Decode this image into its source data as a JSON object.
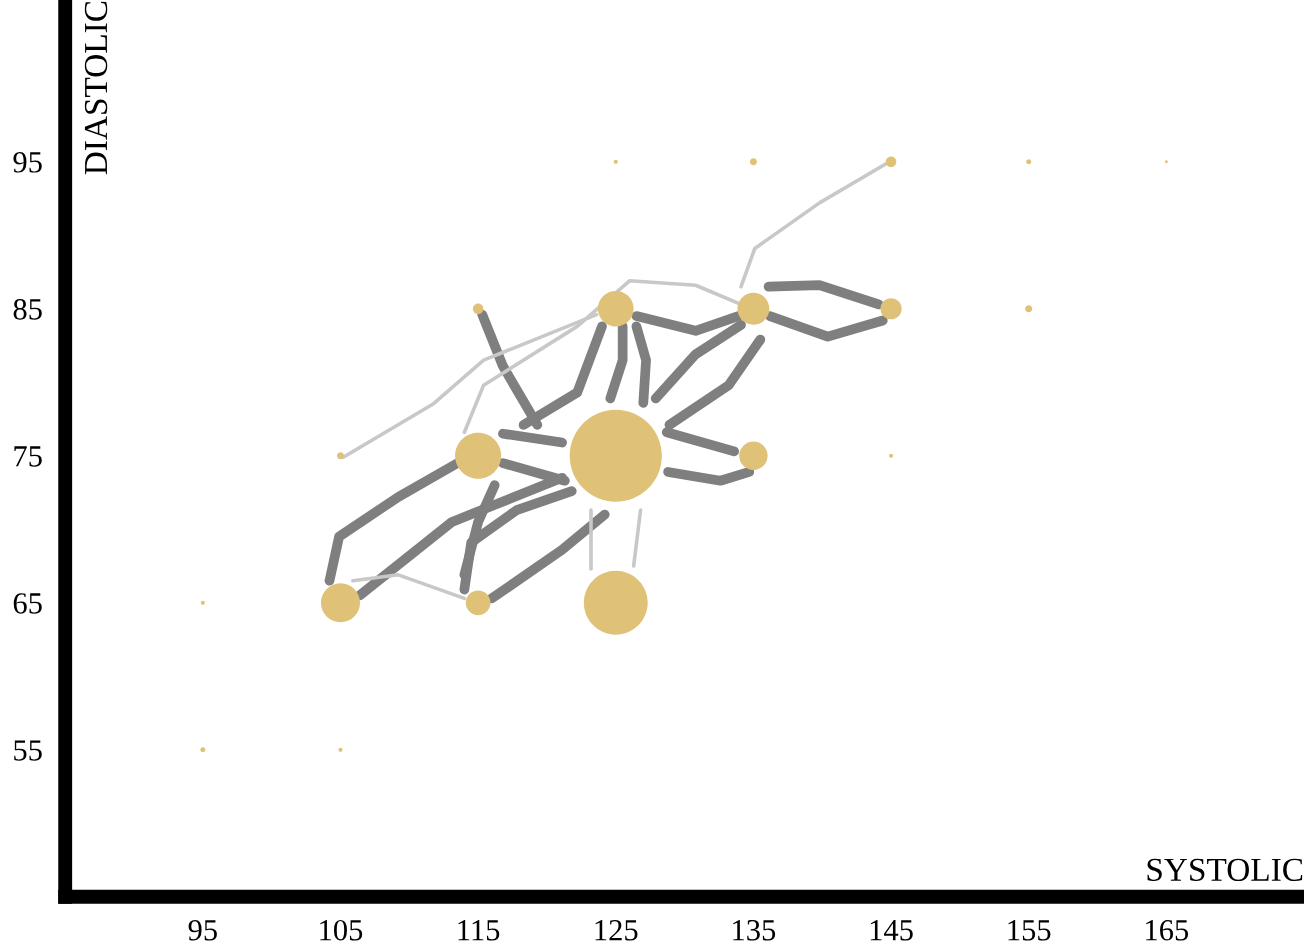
{
  "chart_data": {
    "type": "bubble",
    "xlabel": "SYSTOLIC",
    "ylabel": "DIASTOLIC",
    "xlim": [
      85,
      175
    ],
    "ylim": [
      45,
      106
    ],
    "xticks": [
      95,
      105,
      115,
      125,
      135,
      145,
      155,
      165
    ],
    "yticks": [
      55,
      65,
      75,
      85,
      95
    ],
    "grid": false,
    "legend": false,
    "series": [
      {
        "type": "line",
        "color": "#7f7f7f",
        "x": [
          104.2,
          104.9,
          109.2,
          113.5
        ],
        "values": [
          66.5,
          69.5,
          72.2,
          74.5
        ]
      },
      {
        "type": "line",
        "color": "#7f7f7f",
        "x": [
          106.4,
          113.1,
          121.1
        ],
        "values": [
          65.5,
          70.5,
          73.5
        ]
      },
      {
        "type": "line",
        "color": "#7f7f7f",
        "x": [
          116.2,
          115.0,
          114.0
        ],
        "values": [
          73.0,
          70.5,
          66.9
        ]
      },
      {
        "type": "line",
        "color": "#c8c8c8",
        "x": [
          105.9,
          109.2,
          114.0
        ],
        "values": [
          66.5,
          66.9,
          65.3
        ]
      },
      {
        "type": "line",
        "color": "#7f7f7f",
        "x": [
          116.0,
          121.1,
          124.2
        ],
        "values": [
          65.3,
          68.6,
          71.0
        ]
      },
      {
        "type": "line",
        "color": "#7f7f7f",
        "x": [
          114.0,
          114.5,
          117.8,
          121.8
        ],
        "values": [
          65.9,
          69.1,
          71.3,
          72.6
        ]
      },
      {
        "type": "line",
        "color": "#7f7f7f",
        "x": [
          116.8,
          121.1
        ],
        "values": [
          76.5,
          75.9
        ]
      },
      {
        "type": "line",
        "color": "#7f7f7f",
        "x": [
          116.8,
          121.3
        ],
        "values": [
          74.5,
          73.3
        ]
      },
      {
        "type": "line",
        "color": "#7f7f7f",
        "x": [
          124.0,
          122.2,
          118.3
        ],
        "values": [
          83.8,
          79.3,
          77.1
        ]
      },
      {
        "type": "line",
        "color": "#7f7f7f",
        "x": [
          115.3,
          116.8,
          119.3
        ],
        "values": [
          84.6,
          81.1,
          77.1
        ]
      },
      {
        "type": "line",
        "color": "#c8c8c8",
        "x": [
          105.2,
          111.7,
          115.4,
          123.6
        ],
        "values": [
          74.9,
          78.5,
          81.5,
          84.6
        ]
      },
      {
        "type": "line",
        "color": "#c8c8c8",
        "x": [
          114.0,
          115.4,
          122.2,
          126.0,
          130.8,
          134.1
        ],
        "values": [
          76.6,
          79.8,
          83.8,
          86.9,
          86.6,
          85.3
        ]
      },
      {
        "type": "line",
        "color": "#7f7f7f",
        "x": [
          124.6,
          125.5,
          125.5
        ],
        "values": [
          78.9,
          81.5,
          83.8
        ]
      },
      {
        "type": "line",
        "color": "#7f7f7f",
        "x": [
          127.0,
          127.2,
          126.5
        ],
        "values": [
          78.6,
          81.5,
          83.8
        ]
      },
      {
        "type": "line",
        "color": "#7f7f7f",
        "x": [
          127.9,
          130.8,
          134.1
        ],
        "values": [
          78.9,
          81.9,
          83.9
        ]
      },
      {
        "type": "line",
        "color": "#7f7f7f",
        "x": [
          128.9,
          133.2,
          135.5
        ],
        "values": [
          77.1,
          79.8,
          82.9
        ]
      },
      {
        "type": "line",
        "color": "#7f7f7f",
        "x": [
          128.7,
          133.6
        ],
        "values": [
          76.6,
          75.3
        ]
      },
      {
        "type": "line",
        "color": "#7f7f7f",
        "x": [
          128.8,
          132.6,
          134.7
        ],
        "values": [
          73.9,
          73.3,
          73.9
        ]
      },
      {
        "type": "line",
        "color": "#c8c8c8",
        "x": [
          123.2,
          123.2
        ],
        "values": [
          71.3,
          67.3
        ]
      },
      {
        "type": "line",
        "color": "#c8c8c8",
        "x": [
          126.8,
          126.3
        ],
        "values": [
          71.3,
          67.5
        ]
      },
      {
        "type": "line",
        "color": "#7f7f7f",
        "x": [
          126.5,
          130.8,
          133.9
        ],
        "values": [
          84.5,
          83.5,
          84.5
        ]
      },
      {
        "type": "line",
        "color": "#7f7f7f",
        "x": [
          136.1,
          139.8,
          144.1
        ],
        "values": [
          86.5,
          86.6,
          85.3
        ]
      },
      {
        "type": "line",
        "color": "#7f7f7f",
        "x": [
          136.2,
          140.4,
          144.4
        ],
        "values": [
          84.5,
          83.1,
          84.2
        ]
      },
      {
        "type": "line",
        "color": "#c8c8c8",
        "x": [
          134.1,
          135.1,
          139.8,
          144.7
        ],
        "values": [
          86.5,
          89.1,
          92.2,
          94.9
        ]
      },
      {
        "color": "#dfc177",
        "x": [
          125,
          125,
          115,
          125,
          135,
          105,
          135,
          145,
          115,
          145,
          115,
          105,
          135,
          155,
          155,
          125,
          95,
          105,
          95,
          145,
          165
        ],
        "values": [
          75,
          65,
          75,
          85,
          85,
          65,
          75,
          85,
          65,
          95,
          85,
          75,
          95,
          85,
          95,
          95,
          55,
          55,
          65,
          75,
          95
        ],
        "sizes": [
          1,
          0.48,
          0.25,
          0.15,
          0.12,
          0.18,
          0.095,
          0.053,
          0.072,
          0.013,
          0.013,
          0.006,
          0.006,
          0.006,
          0.003,
          0.002,
          0.003,
          0.002,
          0.002,
          0.002,
          0.001
        ]
      }
    ]
  }
}
